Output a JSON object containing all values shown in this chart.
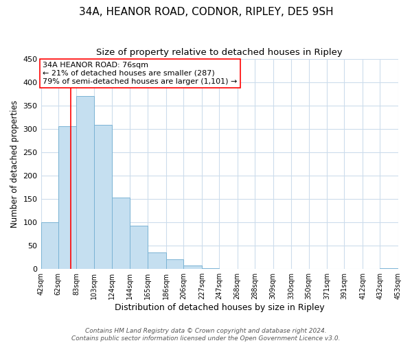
{
  "title": "34A, HEANOR ROAD, CODNOR, RIPLEY, DE5 9SH",
  "subtitle": "Size of property relative to detached houses in Ripley",
  "xlabel": "Distribution of detached houses by size in Ripley",
  "ylabel": "Number of detached properties",
  "bar_edges": [
    42,
    62,
    83,
    103,
    124,
    144,
    165,
    186,
    206,
    227,
    247,
    268,
    288,
    309,
    330,
    350,
    371,
    391,
    412,
    432,
    453
  ],
  "bar_heights": [
    100,
    305,
    370,
    308,
    153,
    93,
    35,
    20,
    7,
    1,
    0,
    0,
    0,
    0,
    0,
    0,
    0,
    0,
    0,
    2
  ],
  "bar_color": "#c5dff0",
  "bar_edgecolor": "#7ab3d4",
  "reference_line_x": 76,
  "ylim": [
    0,
    450
  ],
  "xlim": [
    42,
    453
  ],
  "annotation_title": "34A HEANOR ROAD: 76sqm",
  "annotation_line1": "← 21% of detached houses are smaller (287)",
  "annotation_line2": "79% of semi-detached houses are larger (1,101) →",
  "tick_labels": [
    "42sqm",
    "62sqm",
    "83sqm",
    "103sqm",
    "124sqm",
    "144sqm",
    "165sqm",
    "186sqm",
    "206sqm",
    "227sqm",
    "247sqm",
    "268sqm",
    "288sqm",
    "309sqm",
    "330sqm",
    "350sqm",
    "371sqm",
    "391sqm",
    "412sqm",
    "432sqm",
    "453sqm"
  ],
  "footer_line1": "Contains HM Land Registry data © Crown copyright and database right 2024.",
  "footer_line2": "Contains public sector information licensed under the Open Government Licence v3.0.",
  "bg_color": "#ffffff",
  "grid_color": "#ccdcec",
  "title_fontsize": 11,
  "subtitle_fontsize": 9.5,
  "ylabel_fontsize": 8.5,
  "xlabel_fontsize": 9,
  "tick_fontsize": 7,
  "footer_fontsize": 6.5,
  "annotation_fontsize": 8
}
